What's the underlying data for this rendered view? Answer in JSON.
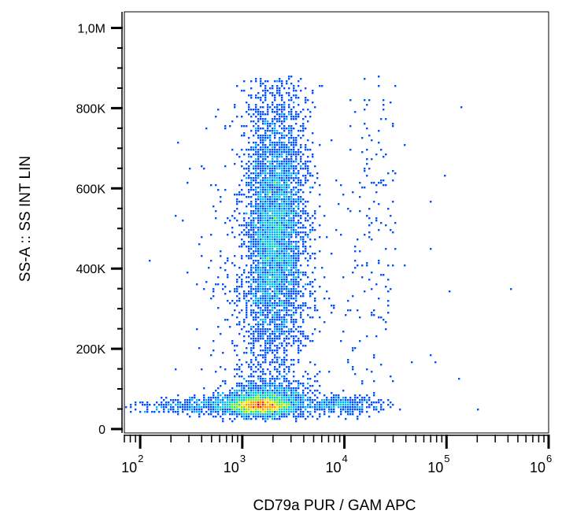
{
  "chart_data": {
    "type": "scatter",
    "title": "",
    "xlabel": "CD79a PUR / GAM APC",
    "ylabel": "SS-A :: SS INT LIN",
    "x_scale": "log",
    "xlim": [
      70,
      1000000
    ],
    "ylim": [
      0,
      1050000
    ],
    "x_ticks": [
      {
        "value": 100,
        "base": "10",
        "exp": "2"
      },
      {
        "value": 1000,
        "base": "10",
        "exp": "3"
      },
      {
        "value": 10000,
        "base": "10",
        "exp": "4"
      },
      {
        "value": 100000,
        "base": "10",
        "exp": "5"
      },
      {
        "value": 1000000,
        "base": "10",
        "exp": "6"
      }
    ],
    "y_ticks": [
      {
        "value": 0,
        "label": "0"
      },
      {
        "value": 200000,
        "label": "200K"
      },
      {
        "value": 400000,
        "label": "400K"
      },
      {
        "value": 600000,
        "label": "600K"
      },
      {
        "value": 800000,
        "label": "800K"
      },
      {
        "value": 1000000,
        "label": "1,0M"
      }
    ],
    "grid": false,
    "legend": "none",
    "color_map": [
      "#1f00c8",
      "#0050ff",
      "#00b4ff",
      "#00e0a0",
      "#7ef000",
      "#ffe600",
      "#ff9400",
      "#ff2a00",
      "#d40000"
    ],
    "populations": [
      {
        "x_center": 1500,
        "x_spread_log10": 0.15,
        "y_center": 58000,
        "y_spread": 10000,
        "count": 1800
      },
      {
        "x_center": 1700,
        "x_spread_log10": 0.22,
        "y_center": 70000,
        "y_spread": 25000,
        "count": 1400
      },
      {
        "x_center": 500,
        "x_spread_log10": 0.25,
        "y_center": 60000,
        "y_spread": 10000,
        "count": 300
      },
      {
        "x_center": 200,
        "x_spread_log10": 0.3,
        "y_center": 55000,
        "y_spread": 8000,
        "count": 120
      },
      {
        "x_center": 2100,
        "x_spread_log10": 0.13,
        "y_center": 480000,
        "y_spread": 130000,
        "count": 2600
      },
      {
        "x_center": 2200,
        "x_spread_log10": 0.17,
        "y_center": 600000,
        "y_spread": 170000,
        "count": 1700
      },
      {
        "x_center": 1800,
        "x_spread_log10": 0.2,
        "y_center": 280000,
        "y_spread": 130000,
        "count": 700
      },
      {
        "x_center": 9000,
        "x_spread_log10": 0.2,
        "y_center": 60000,
        "y_spread": 12000,
        "count": 350
      },
      {
        "x_center": 20000,
        "x_spread_log10": 0.12,
        "y_center": 560000,
        "y_spread": 180000,
        "count": 120
      },
      {
        "x_center": 9000,
        "x_spread_log10": 0.45,
        "y_center": 300000,
        "y_spread": 220000,
        "count": 120
      },
      {
        "x_center": 1000,
        "x_spread_log10": 0.3,
        "y_center": 400000,
        "y_spread": 250000,
        "count": 220
      }
    ]
  }
}
